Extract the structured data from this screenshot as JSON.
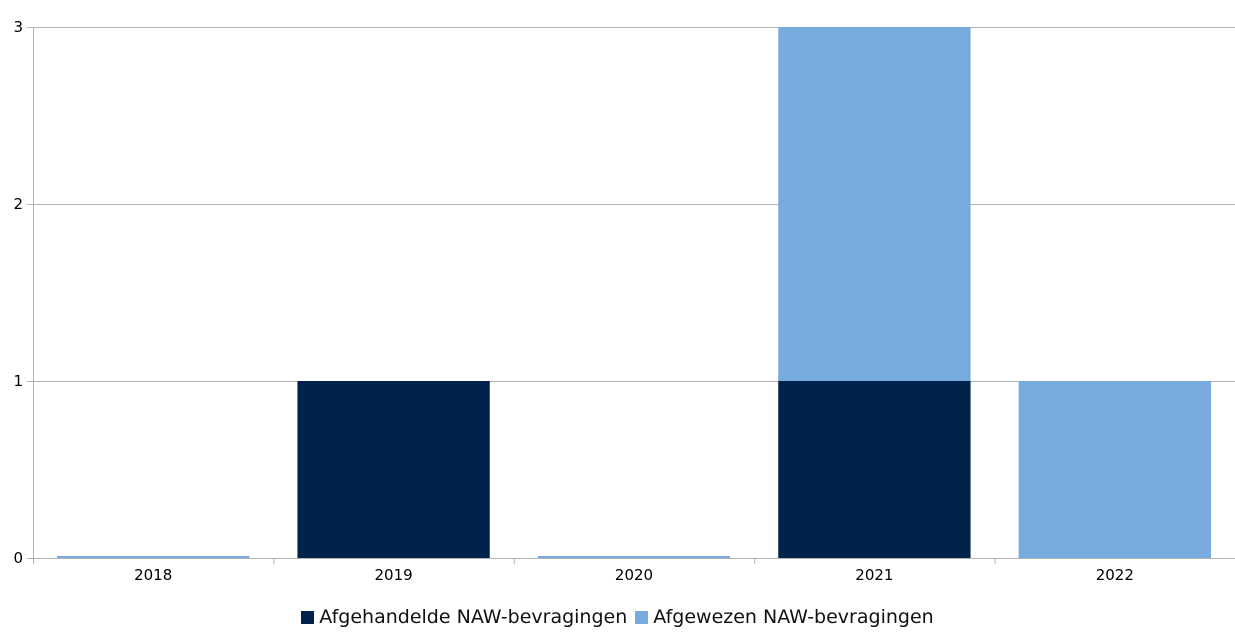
{
  "chart_data": {
    "type": "bar",
    "stacked": true,
    "categories": [
      "2018",
      "2019",
      "2020",
      "2021",
      "2022"
    ],
    "series": [
      {
        "name": "Afgehandelde NAW-bevragingen",
        "color": "#00234B",
        "values": [
          0,
          1,
          0,
          1,
          0
        ]
      },
      {
        "name": "Afgewezen NAW-bevragingen",
        "color": "#77AADD",
        "values": [
          0,
          0,
          0,
          2,
          1
        ]
      }
    ],
    "ylim": [
      0,
      3
    ],
    "yticks": [
      "0",
      "1",
      "2",
      "3"
    ],
    "grid": true,
    "legend_position": "bottom-center",
    "title": "",
    "xlabel": "",
    "ylabel": ""
  }
}
